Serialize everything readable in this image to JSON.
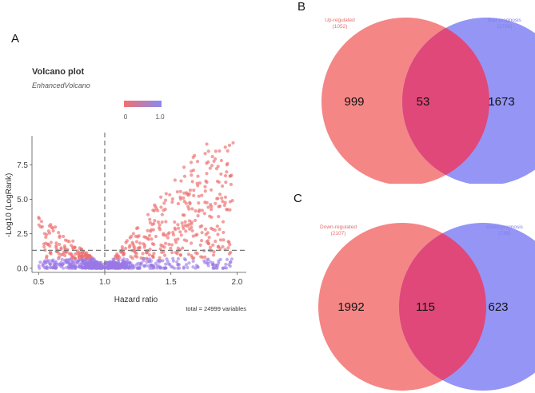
{
  "panels": {
    "a": "A",
    "b": "B",
    "c": "C"
  },
  "volcano": {
    "title": "Volcano plot",
    "subtitle": "EnhancedVolcano",
    "legend": {
      "min_label": "0",
      "max_label": "1.0",
      "colors": [
        "#f07070",
        "#8a8af0"
      ]
    },
    "caption": "total = 24999 variables",
    "chart_data": {
      "type": "scatter",
      "xlabel": "Hazard ratio",
      "ylabel": "-Log10 (LogRank)",
      "xlim": [
        0.45,
        2.07
      ],
      "ylim": [
        -0.3,
        9.6
      ],
      "x_ticks": [
        0.5,
        1.0,
        1.5,
        2.0
      ],
      "x_tick_labels": [
        "0.5",
        "1.0",
        "1.5",
        "2.0"
      ],
      "y_ticks": [
        0.0,
        2.5,
        5.0,
        7.5
      ],
      "y_tick_labels": [
        "0.0",
        "2.5",
        "5.0",
        "7.5"
      ],
      "threshold_x": 1.0,
      "threshold_y": 1.3,
      "total_points": 24999,
      "point_color": "#ec6d6d",
      "point_color_low": "#9a78e6"
    }
  },
  "venn_b": {
    "left_label": "Up-regulated",
    "left_count": "(1052)",
    "right_label": "Bad prognosis",
    "right_count": "(1726)",
    "left_only": "999",
    "overlap": "53",
    "right_only": "1673",
    "chart_data": {
      "type": "venn",
      "sets": [
        {
          "name": "Up-regulated",
          "size": 1052
        },
        {
          "name": "Bad prognosis",
          "size": 1726
        }
      ],
      "regions": {
        "left_only": 999,
        "intersection": 53,
        "right_only": 1673
      }
    }
  },
  "venn_c": {
    "left_label": "Down-regulated",
    "left_count": "(2107)",
    "right_label": "Good prognosis",
    "right_count": "(738)",
    "left_only": "1992",
    "overlap": "115",
    "right_only": "623",
    "chart_data": {
      "type": "venn",
      "sets": [
        {
          "name": "Down-regulated",
          "size": 2107
        },
        {
          "name": "Good prognosis",
          "size": 738
        }
      ],
      "regions": {
        "left_only": 1992,
        "intersection": 115,
        "right_only": 623
      }
    }
  },
  "colors": {
    "left_circle": "#f47c7c",
    "right_circle": "#8c8cf5",
    "overlap": "#e0487a"
  }
}
